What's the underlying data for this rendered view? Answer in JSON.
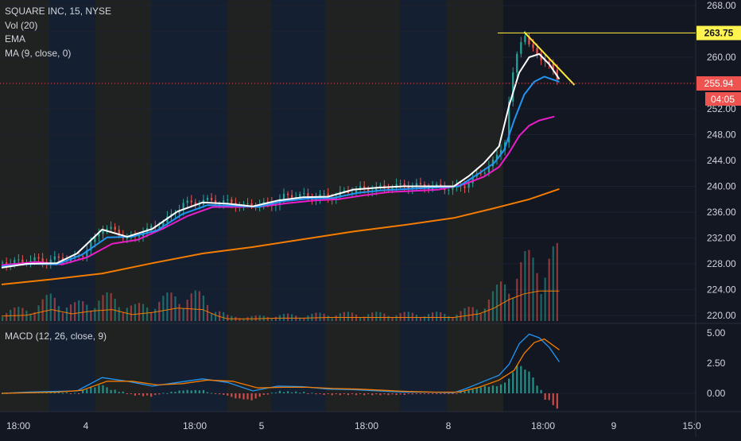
{
  "header": {
    "symbol_line": "SQUARE INC, 15, NYSE",
    "indicators": [
      "Vol (20)",
      "EMA",
      "MA (9, close, 0)"
    ]
  },
  "macd": {
    "label": "MACD (12, 26, close, 9)"
  },
  "colors": {
    "background": "#131722",
    "session_pre": "#2b2a22",
    "session_post": "#172638",
    "grid": "#1e2230",
    "axis_text": "#d1d4dc",
    "up": "#26a69a",
    "down": "#ef5350",
    "ema_fast": "#ffffff",
    "ema_mid": "#2196f3",
    "ma9": "#e91ec8",
    "ma_long": "#f57c00",
    "trendline": "#ffeb3b",
    "macd_line": "#2196f3",
    "signal_line": "#f57c00",
    "last_price_tag": "#ef5350"
  },
  "chart_data": {
    "type": "candlestick",
    "price_axis": {
      "ticks": [
        "268.00",
        "264.00",
        "260.00",
        "256.00",
        "252.00",
        "248.00",
        "244.00",
        "240.00",
        "236.00",
        "232.00",
        "228.00",
        "224.00",
        "220.00"
      ],
      "range": [
        219.5,
        269.5
      ]
    },
    "price_labels": {
      "horizontal_level": "263.75",
      "last_price": "255.94",
      "countdown": "04:05"
    },
    "macd_axis": {
      "ticks": [
        "5.00",
        "2.50",
        "0.00"
      ],
      "range": [
        -1.4,
        5.8
      ]
    },
    "time_axis": {
      "labels": [
        "18:00",
        "4",
        "18:00",
        "5",
        "18:00",
        "8",
        "18:00",
        "9",
        "15:0"
      ]
    },
    "sessions": [
      "pre",
      "post",
      "pre",
      "post",
      "pre",
      "post",
      "pre",
      "post",
      "pre",
      "post",
      "pre"
    ],
    "price_path": [
      [
        0,
        228.2
      ],
      [
        8,
        228.3
      ],
      [
        12,
        228.6
      ],
      [
        18,
        228.5
      ],
      [
        24,
        228.9
      ],
      [
        28,
        228.6
      ],
      [
        32,
        229.6
      ],
      [
        36,
        231.4
      ],
      [
        40,
        233.7
      ],
      [
        44,
        233.2
      ],
      [
        48,
        232.3
      ],
      [
        52,
        231.8
      ],
      [
        56,
        233.2
      ],
      [
        60,
        233.5
      ],
      [
        64,
        234.6
      ],
      [
        68,
        235.6
      ],
      [
        72,
        237.5
      ],
      [
        76,
        237.2
      ],
      [
        80,
        237.8
      ],
      [
        84,
        237.7
      ],
      [
        88,
        237.6
      ],
      [
        92,
        237.4
      ],
      [
        96,
        236.9
      ],
      [
        100,
        237.1
      ],
      [
        104,
        237.2
      ],
      [
        108,
        237.3
      ],
      [
        112,
        238.4
      ],
      [
        116,
        238.7
      ],
      [
        120,
        238.5
      ],
      [
        124,
        238.3
      ],
      [
        128,
        238.5
      ],
      [
        132,
        238.3
      ],
      [
        136,
        239.1
      ],
      [
        140,
        239.5
      ],
      [
        144,
        239.6
      ],
      [
        148,
        239.7
      ],
      [
        152,
        239.7
      ],
      [
        156,
        240.0
      ],
      [
        160,
        240.1
      ],
      [
        164,
        240.1
      ],
      [
        168,
        240.0
      ],
      [
        172,
        239.9
      ],
      [
        176,
        239.8
      ],
      [
        180,
        239.8
      ],
      [
        184,
        240.2
      ],
      [
        188,
        241.4
      ],
      [
        192,
        242.6
      ],
      [
        196,
        244.0
      ],
      [
        200,
        247.2
      ],
      [
        202,
        254.5
      ],
      [
        204,
        259.0
      ],
      [
        206,
        262.5
      ],
      [
        208,
        263.6
      ],
      [
        210,
        261.3
      ],
      [
        212,
        260.8
      ],
      [
        214,
        260.1
      ],
      [
        216,
        259.5
      ],
      [
        218,
        258.5
      ],
      [
        220,
        257.2
      ],
      [
        222,
        255.94
      ]
    ],
    "ema_fast_path": [
      [
        0,
        227.4
      ],
      [
        10,
        228.0
      ],
      [
        22,
        228.1
      ],
      [
        30,
        229.6
      ],
      [
        40,
        233.3
      ],
      [
        50,
        232.2
      ],
      [
        60,
        233.4
      ],
      [
        70,
        236.1
      ],
      [
        80,
        237.5
      ],
      [
        90,
        237.3
      ],
      [
        100,
        236.9
      ],
      [
        110,
        237.8
      ],
      [
        120,
        238.3
      ],
      [
        130,
        238.4
      ],
      [
        140,
        239.5
      ],
      [
        150,
        239.8
      ],
      [
        160,
        240.0
      ],
      [
        170,
        240.0
      ],
      [
        180,
        240.0
      ],
      [
        186,
        241.6
      ],
      [
        192,
        243.6
      ],
      [
        198,
        246.2
      ],
      [
        202,
        252.5
      ],
      [
        206,
        257.6
      ],
      [
        210,
        260.0
      ],
      [
        214,
        260.5
      ],
      [
        218,
        258.9
      ],
      [
        222,
        256.6
      ]
    ],
    "ema_mid_path": [
      [
        0,
        227.6
      ],
      [
        12,
        228.0
      ],
      [
        22,
        227.9
      ],
      [
        32,
        229.4
      ],
      [
        42,
        232.1
      ],
      [
        52,
        232.2
      ],
      [
        62,
        233.2
      ],
      [
        72,
        235.7
      ],
      [
        82,
        237.1
      ],
      [
        92,
        237.0
      ],
      [
        102,
        236.8
      ],
      [
        112,
        237.7
      ],
      [
        122,
        238.1
      ],
      [
        132,
        238.2
      ],
      [
        142,
        239.0
      ],
      [
        152,
        239.4
      ],
      [
        162,
        239.6
      ],
      [
        172,
        239.8
      ],
      [
        182,
        240.0
      ],
      [
        190,
        242.0
      ],
      [
        196,
        243.6
      ],
      [
        200,
        245.6
      ],
      [
        204,
        250.2
      ],
      [
        208,
        254.2
      ],
      [
        212,
        256.2
      ],
      [
        216,
        257.0
      ],
      [
        222,
        256.2
      ]
    ],
    "ma9_path": [
      [
        0,
        227.8
      ],
      [
        14,
        228.3
      ],
      [
        24,
        227.9
      ],
      [
        34,
        229.0
      ],
      [
        44,
        231.1
      ],
      [
        54,
        231.7
      ],
      [
        64,
        233.4
      ],
      [
        74,
        235.4
      ],
      [
        84,
        236.8
      ],
      [
        94,
        236.8
      ],
      [
        104,
        236.9
      ],
      [
        114,
        237.4
      ],
      [
        124,
        237.8
      ],
      [
        134,
        238.0
      ],
      [
        144,
        238.6
      ],
      [
        154,
        239.1
      ],
      [
        164,
        239.3
      ],
      [
        174,
        239.5
      ],
      [
        184,
        240.3
      ],
      [
        192,
        241.5
      ],
      [
        198,
        243.0
      ],
      [
        202,
        245.2
      ],
      [
        206,
        247.8
      ],
      [
        210,
        249.4
      ],
      [
        214,
        250.2
      ],
      [
        220,
        250.8
      ]
    ],
    "ma_long_path": [
      [
        0,
        224.8
      ],
      [
        20,
        225.6
      ],
      [
        40,
        226.5
      ],
      [
        60,
        228.1
      ],
      [
        80,
        229.6
      ],
      [
        100,
        230.6
      ],
      [
        120,
        231.8
      ],
      [
        140,
        233.0
      ],
      [
        160,
        234.0
      ],
      [
        180,
        235.1
      ],
      [
        195,
        236.5
      ],
      [
        210,
        238.0
      ],
      [
        222,
        239.6
      ]
    ],
    "trendline": {
      "from": [
        208,
        263.9
      ],
      "to": [
        228,
        255.7
      ]
    },
    "volume_path": [
      [
        0,
        0.07
      ],
      [
        10,
        0.08
      ],
      [
        20,
        0.16
      ],
      [
        28,
        0.1
      ],
      [
        36,
        0.14
      ],
      [
        44,
        0.16
      ],
      [
        52,
        0.09
      ],
      [
        60,
        0.12
      ],
      [
        70,
        0.18
      ],
      [
        80,
        0.16
      ],
      [
        86,
        0.07
      ],
      [
        90,
        0.03
      ],
      [
        100,
        0.03
      ],
      [
        110,
        0.04
      ],
      [
        120,
        0.04
      ],
      [
        130,
        0.05
      ],
      [
        140,
        0.05
      ],
      [
        150,
        0.05
      ],
      [
        160,
        0.05
      ],
      [
        170,
        0.05
      ],
      [
        180,
        0.05
      ],
      [
        190,
        0.1
      ],
      [
        196,
        0.18
      ],
      [
        202,
        0.3
      ],
      [
        208,
        0.38
      ],
      [
        214,
        0.42
      ],
      [
        222,
        0.42
      ]
    ],
    "macd_path": [
      [
        0,
        0.0
      ],
      [
        10,
        0.1
      ],
      [
        20,
        0.15
      ],
      [
        30,
        0.2
      ],
      [
        40,
        1.3
      ],
      [
        50,
        1.0
      ],
      [
        60,
        0.6
      ],
      [
        70,
        0.9
      ],
      [
        80,
        1.2
      ],
      [
        90,
        0.9
      ],
      [
        100,
        0.2
      ],
      [
        110,
        0.6
      ],
      [
        120,
        0.55
      ],
      [
        130,
        0.35
      ],
      [
        140,
        0.3
      ],
      [
        150,
        0.2
      ],
      [
        160,
        0.1
      ],
      [
        170,
        0.1
      ],
      [
        180,
        0.05
      ],
      [
        185,
        0.4
      ],
      [
        192,
        1.0
      ],
      [
        198,
        1.5
      ],
      [
        202,
        2.4
      ],
      [
        206,
        4.1
      ],
      [
        210,
        4.9
      ],
      [
        214,
        4.6
      ],
      [
        218,
        3.8
      ],
      [
        222,
        2.6
      ]
    ],
    "signal_path": [
      [
        0,
        0.0
      ],
      [
        12,
        0.05
      ],
      [
        22,
        0.1
      ],
      [
        32,
        0.25
      ],
      [
        42,
        1.0
      ],
      [
        52,
        1.0
      ],
      [
        62,
        0.7
      ],
      [
        72,
        0.8
      ],
      [
        82,
        1.1
      ],
      [
        92,
        1.0
      ],
      [
        102,
        0.45
      ],
      [
        112,
        0.5
      ],
      [
        122,
        0.5
      ],
      [
        132,
        0.4
      ],
      [
        142,
        0.35
      ],
      [
        152,
        0.25
      ],
      [
        162,
        0.15
      ],
      [
        172,
        0.1
      ],
      [
        182,
        0.1
      ],
      [
        190,
        0.5
      ],
      [
        198,
        1.1
      ],
      [
        204,
        1.9
      ],
      [
        208,
        3.3
      ],
      [
        212,
        4.2
      ],
      [
        216,
        4.5
      ],
      [
        222,
        3.6
      ]
    ]
  }
}
